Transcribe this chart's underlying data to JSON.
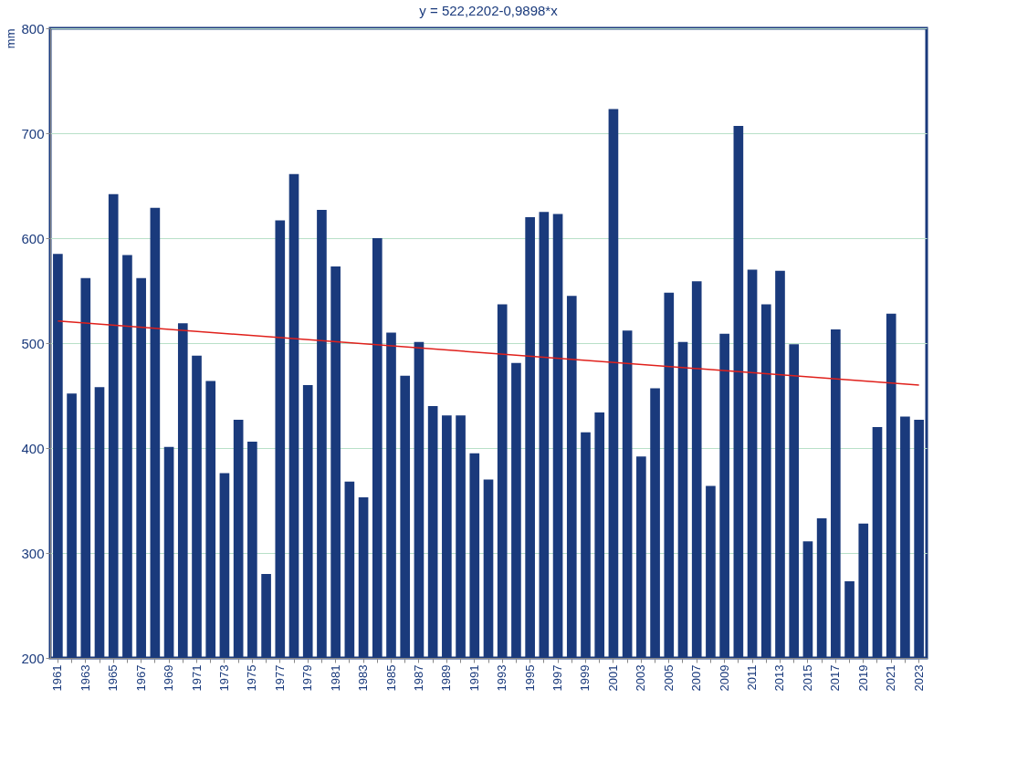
{
  "chart_data": {
    "type": "bar",
    "title": "y = 522,2202-0,9898*x",
    "ylabel": "mm",
    "categories": [
      "1961",
      null,
      "1963",
      null,
      "1965",
      null,
      "1967",
      null,
      "1969",
      null,
      "1971",
      null,
      "1973",
      null,
      "1975",
      null,
      "1977",
      null,
      "1979",
      null,
      "1981",
      null,
      "1983",
      null,
      "1985",
      null,
      "1987",
      null,
      "1989",
      null,
      "1991",
      null,
      "1993",
      null,
      "1995",
      null,
      "1997",
      null,
      "1999",
      null,
      "2001",
      null,
      "2003",
      null,
      "2005",
      null,
      "2007",
      null,
      "2009",
      null,
      "2011",
      null,
      "2013",
      null,
      "2015",
      null,
      "2017",
      null,
      "2019",
      null,
      "2021",
      null,
      "2023"
    ],
    "series": [
      {
        "color": "#1a3a7c",
        "values": [
          585,
          452,
          562,
          458,
          642,
          584,
          562,
          629,
          401,
          519,
          488,
          464,
          376,
          427,
          406,
          280,
          617,
          661,
          460,
          627,
          573,
          368,
          353,
          600,
          510,
          469,
          501,
          440,
          431,
          431,
          395,
          370,
          537,
          481,
          620,
          625,
          623,
          545,
          415,
          434,
          723,
          512,
          392,
          457,
          548,
          501,
          559,
          364,
          509,
          707,
          570,
          537,
          569,
          499,
          311,
          333,
          513,
          273,
          328,
          420,
          528,
          430,
          427
        ]
      },
      {
        "type": "line",
        "color": "#e0201b",
        "values": [
          521,
          null,
          null,
          null,
          null,
          null,
          null,
          null,
          null,
          null,
          null,
          null,
          null,
          null,
          null,
          null,
          null,
          null,
          null,
          null,
          null,
          null,
          null,
          null,
          null,
          null,
          null,
          null,
          null,
          null,
          null,
          null,
          null,
          null,
          null,
          null,
          null,
          null,
          null,
          null,
          null,
          null,
          null,
          null,
          null,
          null,
          null,
          null,
          null,
          null,
          null,
          null,
          null,
          null,
          null,
          null,
          null,
          null,
          null,
          null,
          null,
          null,
          460
        ]
      }
    ],
    "ylim": [
      200,
      800
    ],
    "yticks": [
      200,
      300,
      400,
      500,
      600,
      700,
      800
    ],
    "grid": "y"
  }
}
